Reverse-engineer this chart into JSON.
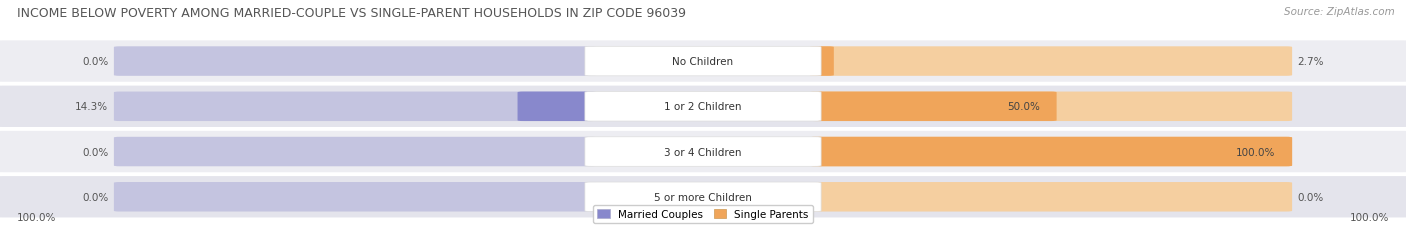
{
  "title": "INCOME BELOW POVERTY AMONG MARRIED-COUPLE VS SINGLE-PARENT HOUSEHOLDS IN ZIP CODE 96039",
  "source": "Source: ZipAtlas.com",
  "categories": [
    "No Children",
    "1 or 2 Children",
    "3 or 4 Children",
    "5 or more Children"
  ],
  "married_values": [
    0.0,
    14.3,
    0.0,
    0.0
  ],
  "single_values": [
    2.7,
    50.0,
    100.0,
    0.0
  ],
  "married_color": "#8888cc",
  "married_color_light": "#c4c4e0",
  "single_color": "#f0a55a",
  "single_color_light": "#f5cfa0",
  "row_bg_even": "#ededf2",
  "row_bg_odd": "#e4e4ec",
  "title_fontsize": 9.0,
  "source_fontsize": 7.5,
  "label_fontsize": 7.5,
  "category_fontsize": 7.5,
  "legend_fontsize": 7.5,
  "max_value": 100.0,
  "left_label": "100.0%",
  "right_label": "100.0%",
  "background_color": "#ffffff"
}
